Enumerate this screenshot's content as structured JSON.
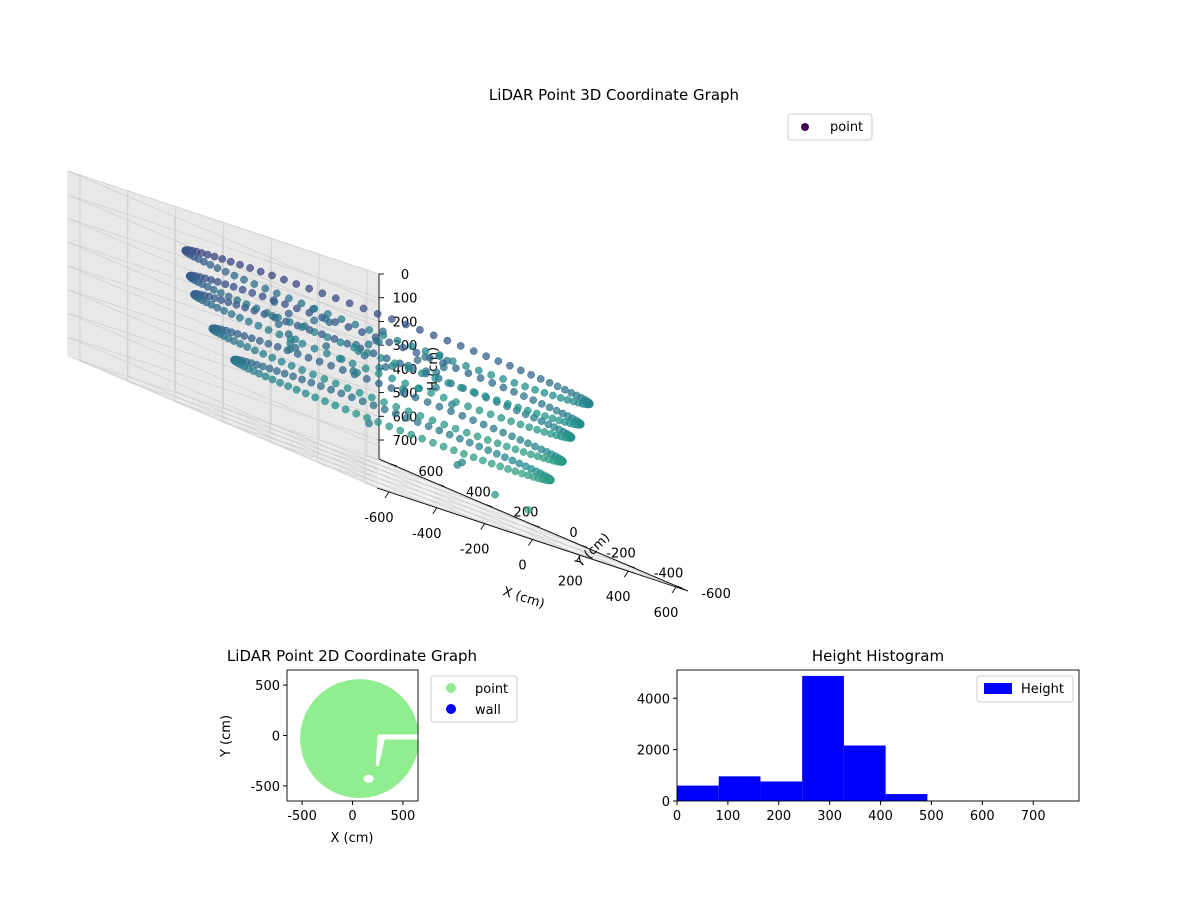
{
  "chart_data": [
    {
      "type": "scatter",
      "projection": "3d",
      "title": "LiDAR Point 3D Coordinate Graph",
      "xlabel": "X (cm)",
      "ylabel": "Y (cm)",
      "zlabel": "H (cm)",
      "xlim": [
        -650,
        650
      ],
      "ylim": [
        -650,
        650
      ],
      "zlim": [
        780,
        0
      ],
      "xticks": [
        "-600",
        "-400",
        "-200",
        "0",
        "200",
        "400",
        "600"
      ],
      "yticks": [
        "-600",
        "-400",
        "-200",
        "0",
        "200",
        "400",
        "600"
      ],
      "zticks": [
        "0",
        "100",
        "200",
        "300",
        "400",
        "500",
        "600",
        "700"
      ],
      "z_axis_inverted": true,
      "colormap": "viridis",
      "grid": true,
      "legend": {
        "location": "upper-right",
        "entries": [
          {
            "label": "point",
            "color": "#440154"
          }
        ]
      },
      "series": [
        {
          "name": "point",
          "rings": [
            {
              "radius": 600,
              "h": 150,
              "center": [
                40,
                0
              ]
            },
            {
              "radius": 580,
              "h": 250,
              "center": [
                30,
                0
              ]
            },
            {
              "radius": 560,
              "h": 320,
              "center": [
                20,
                0
              ]
            },
            {
              "radius": 520,
              "h": 440,
              "center": [
                80,
                40
              ]
            },
            {
              "radius": 470,
              "h": 540,
              "center": [
                120,
                60
              ]
            }
          ],
          "outliers": [
            {
              "x": 380,
              "y": -250,
              "h": 700
            },
            {
              "x": 430,
              "y": -60,
              "h": 700
            },
            {
              "x": 360,
              "y": 400,
              "h": 620
            },
            {
              "x": 600,
              "y": 250,
              "h": 640
            },
            {
              "x": 610,
              "y": 280,
              "h": 660
            }
          ]
        }
      ]
    },
    {
      "type": "scatter",
      "title": "LiDAR Point 2D Coordinate Graph",
      "xlabel": "X (cm)",
      "ylabel": "Y (cm)",
      "xlim": [
        -650,
        650
      ],
      "ylim": [
        -650,
        650
      ],
      "xticks": [
        "-500",
        "0",
        "500"
      ],
      "yticks": [
        "500",
        "0",
        "-500"
      ],
      "legend": {
        "location": "outside-right",
        "entries": [
          {
            "label": "point",
            "color": "#90ee90"
          },
          {
            "label": "wall",
            "color": "#0000ff"
          }
        ]
      },
      "series": [
        {
          "name": "point",
          "color": "#90ee90",
          "shape": "disc",
          "center": [
            70,
            -30
          ],
          "radius": 590
        },
        {
          "name": "wall",
          "color": "#0000ff",
          "values": []
        }
      ]
    },
    {
      "type": "bar",
      "histogram": true,
      "title": "Height Histogram",
      "xlim": [
        0,
        790
      ],
      "ylim": [
        0,
        5100
      ],
      "xticks": [
        "0",
        "100",
        "200",
        "300",
        "400",
        "500",
        "600",
        "700"
      ],
      "yticks": [
        "0",
        "2000",
        "4000"
      ],
      "legend": {
        "location": "upper-right",
        "entries": [
          {
            "label": "Height",
            "color": "#0000ff"
          }
        ]
      },
      "series": [
        {
          "name": "Height",
          "color": "#0000ff",
          "bin_edges": [
            0,
            82,
            164,
            246,
            328,
            410,
            492,
            574,
            656,
            738,
            790
          ],
          "values": [
            600,
            960,
            760,
            4870,
            2160,
            270,
            10,
            5,
            5,
            5
          ]
        }
      ]
    }
  ]
}
